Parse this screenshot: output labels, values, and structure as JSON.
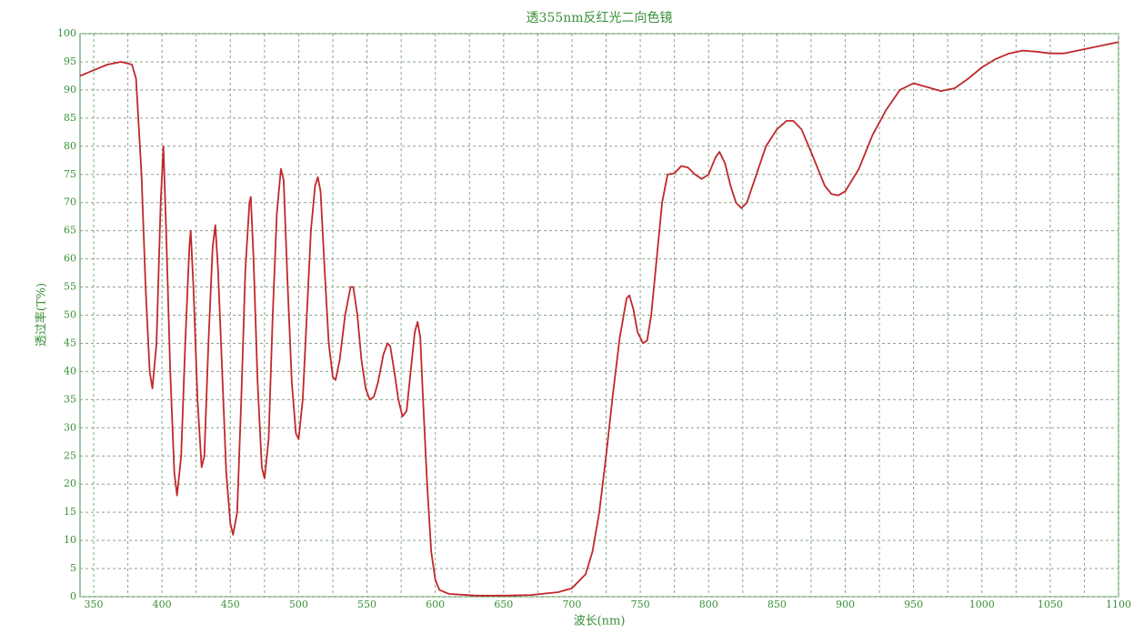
{
  "chart_data": {
    "type": "line",
    "title": "透355nm反红光二向色镜",
    "x_label": "波长(nm)",
    "y_label": "透过率(T%)",
    "xlim": [
      340,
      1100
    ],
    "ylim": [
      0,
      100
    ],
    "xticks": [
      350,
      400,
      450,
      500,
      550,
      600,
      650,
      700,
      750,
      800,
      850,
      900,
      950,
      1000,
      1050,
      1100
    ],
    "xminorticks": [
      375,
      425,
      475,
      525,
      575,
      625,
      675,
      725,
      775,
      825,
      875,
      925,
      975,
      1025,
      1075
    ],
    "yticks": [
      0,
      5,
      10,
      15,
      20,
      25,
      30,
      35,
      40,
      45,
      50,
      55,
      60,
      65,
      70,
      75,
      80,
      85,
      90,
      95,
      100
    ],
    "grid": true,
    "x": [
      340,
      345,
      350,
      360,
      370,
      378,
      381,
      385,
      388,
      391,
      393,
      396,
      399,
      401,
      403,
      406,
      409,
      411,
      414,
      417,
      420,
      421,
      423,
      426,
      429,
      431,
      434,
      437,
      439,
      441,
      444,
      447,
      450,
      452,
      455,
      458,
      461,
      464,
      465,
      467,
      470,
      473,
      475,
      478,
      481,
      484,
      487,
      489,
      492,
      495,
      498,
      500,
      503,
      506,
      509,
      512,
      514,
      516,
      519,
      522,
      525,
      527,
      530,
      534,
      538,
      540,
      543,
      546,
      549,
      552,
      555,
      558,
      562,
      565,
      567,
      570,
      573,
      576,
      579,
      582,
      585,
      587,
      589,
      591,
      594,
      597,
      600,
      603,
      610,
      630,
      650,
      670,
      690,
      700,
      710,
      715,
      720,
      725,
      730,
      735,
      740,
      742,
      745,
      748,
      752,
      755,
      758,
      762,
      766,
      770,
      775,
      780,
      785,
      790,
      795,
      800,
      805,
      808,
      812,
      816,
      820,
      824,
      828,
      835,
      842,
      850,
      857,
      862,
      868,
      875,
      880,
      885,
      890,
      895,
      900,
      910,
      920,
      930,
      940,
      950,
      960,
      970,
      980,
      990,
      1000,
      1010,
      1020,
      1030,
      1040,
      1050,
      1060,
      1070,
      1080,
      1090,
      1100
    ],
    "series": [
      {
        "name": "透过率",
        "color": "#c0282a",
        "values": [
          92.5,
          93,
          93.5,
          94.5,
          95,
          94.5,
          92,
          75,
          55,
          40,
          37,
          45,
          70,
          80,
          65,
          40,
          22,
          18,
          25,
          45,
          62,
          65,
          55,
          35,
          23,
          25,
          45,
          62,
          66,
          58,
          40,
          22,
          13,
          11,
          15,
          35,
          58,
          70,
          71,
          60,
          38,
          23,
          21,
          28,
          50,
          68,
          76,
          74,
          55,
          38,
          29,
          28,
          35,
          50,
          65,
          73,
          74.5,
          72,
          58,
          45,
          39,
          38.5,
          42,
          50,
          55,
          55,
          50,
          42,
          37,
          35,
          35.5,
          38,
          43,
          45,
          44.5,
          40,
          35,
          32,
          33,
          40,
          47,
          48.8,
          46,
          35,
          20,
          8,
          3,
          1.2,
          0.5,
          0.2,
          0.2,
          0.3,
          0.8,
          1.5,
          4,
          8,
          15,
          25,
          36,
          46,
          53,
          53.5,
          51,
          47,
          45,
          45.5,
          50,
          60,
          70,
          75,
          75.2,
          76.5,
          76.2,
          75,
          74.2,
          75,
          78,
          79,
          77,
          73,
          70,
          69,
          70,
          75,
          80,
          83,
          84.5,
          84.5,
          83,
          79,
          76,
          73,
          71.5,
          71.3,
          72,
          76,
          82,
          86.5,
          90,
          91.2,
          90.5,
          89.8,
          90.3,
          92,
          94,
          95.5,
          96.5,
          97,
          96.8,
          96.5,
          96.5,
          97,
          97.5,
          98,
          98.5
        ]
      }
    ]
  }
}
